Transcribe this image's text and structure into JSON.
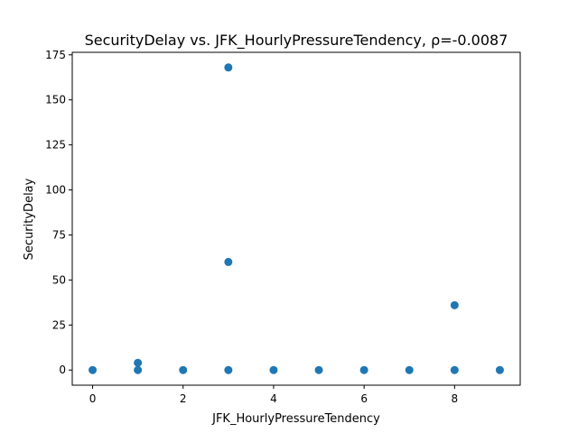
{
  "chart_data": {
    "type": "scatter",
    "title": "SecurityDelay vs. JFK_HourlyPressureTendency, ρ=-0.0087",
    "xlabel": "JFK_HourlyPressureTendency",
    "ylabel": "SecurityDelay",
    "xlim": [
      -0.45,
      9.45
    ],
    "ylim": [
      -8.4,
      176.4
    ],
    "xticks": [
      0,
      2,
      4,
      6,
      8
    ],
    "yticks": [
      0,
      25,
      50,
      75,
      100,
      125,
      150,
      175
    ],
    "grid": false,
    "marker_color": "#1f77b4",
    "series": [
      {
        "name": "SecurityDelay",
        "points": [
          {
            "x": 0,
            "y": 0
          },
          {
            "x": 1,
            "y": 0
          },
          {
            "x": 1,
            "y": 4
          },
          {
            "x": 2,
            "y": 0
          },
          {
            "x": 3,
            "y": 0
          },
          {
            "x": 3,
            "y": 60
          },
          {
            "x": 3,
            "y": 168
          },
          {
            "x": 4,
            "y": 0
          },
          {
            "x": 5,
            "y": 0
          },
          {
            "x": 6,
            "y": 0
          },
          {
            "x": 7,
            "y": 0
          },
          {
            "x": 8,
            "y": 0
          },
          {
            "x": 8,
            "y": 36
          },
          {
            "x": 9,
            "y": 0
          }
        ]
      }
    ]
  }
}
